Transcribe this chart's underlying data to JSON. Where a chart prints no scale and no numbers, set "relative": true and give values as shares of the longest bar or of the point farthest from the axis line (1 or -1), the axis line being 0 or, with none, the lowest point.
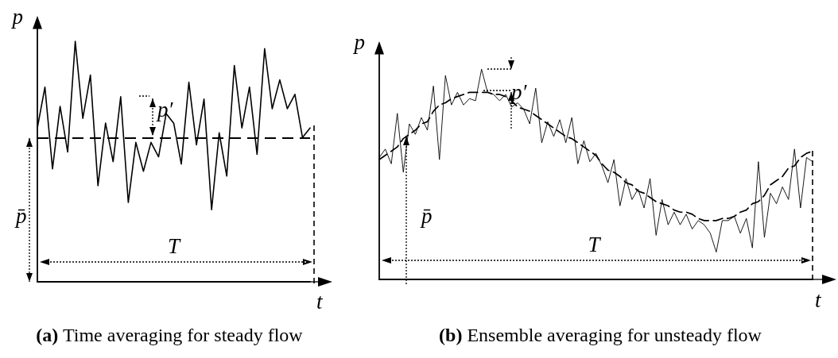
{
  "chart_data": [
    {
      "type": "line",
      "title": "(a) Time averaging for steady flow",
      "xlabel": "t",
      "ylabel": "p",
      "relative": true,
      "grid": false,
      "marker": "none",
      "annotations": [
        "p′",
        "p̄",
        "T"
      ],
      "categories": [
        null,
        null,
        null,
        null,
        null,
        null,
        null,
        null,
        null,
        null,
        null,
        null,
        null,
        null,
        null,
        null,
        null,
        null,
        null,
        null,
        null,
        null,
        null,
        null,
        null,
        null,
        null,
        null,
        null,
        null,
        null,
        null,
        null,
        null,
        null,
        null,
        null
      ],
      "series": [
        {
          "color": "#000000",
          "line_style": "solid",
          "values": [
            0.64,
            0.81,
            0.47,
            0.73,
            0.54,
            1.0,
            0.68,
            0.86,
            0.4,
            0.66,
            0.5,
            0.77,
            0.33,
            0.58,
            0.46,
            0.58,
            0.52,
            0.7,
            0.66,
            0.49,
            0.83,
            0.57,
            0.76,
            0.3,
            0.62,
            0.44,
            0.9,
            0.64,
            0.81,
            0.53,
            0.97,
            0.72,
            0.84,
            0.72,
            0.78,
            0.6,
            0.64
          ]
        }
      ],
      "ref_lines": [
        {
          "axis": "y",
          "value": 0.6,
          "color": "#000000",
          "line_style": "dashed"
        }
      ]
    },
    {
      "type": "line",
      "title": "(b) Ensemble averaging for unsteady flow",
      "xlabel": "t",
      "ylabel": "p",
      "relative": true,
      "grid": false,
      "marker": "none",
      "annotations": [
        "p′",
        "p̄",
        "T"
      ],
      "categories": [
        null,
        null,
        null,
        null,
        null,
        null,
        null,
        null,
        null,
        null,
        null,
        null,
        null,
        null,
        null,
        null,
        null,
        null,
        null,
        null,
        null,
        null,
        null,
        null,
        null,
        null,
        null,
        null,
        null,
        null,
        null,
        null,
        null,
        null,
        null,
        null,
        null,
        null,
        null,
        null,
        null,
        null,
        null,
        null,
        null,
        null,
        null,
        null,
        null,
        null,
        null,
        null,
        null,
        null,
        null,
        null,
        null,
        null,
        null,
        null,
        null,
        null,
        null,
        null,
        null,
        null,
        null,
        null,
        null,
        null,
        null,
        null,
        null
      ],
      "series": [
        {
          "color": "#000000",
          "line_style": "solid",
          "values": [
            0.58,
            0.62,
            0.55,
            0.79,
            0.51,
            0.74,
            0.69,
            0.77,
            0.71,
            0.92,
            0.57,
            0.97,
            0.83,
            0.89,
            0.83,
            0.86,
            0.85,
            1.0,
            0.89,
            0.88,
            0.85,
            0.88,
            0.82,
            0.84,
            0.81,
            0.74,
            0.91,
            0.65,
            0.75,
            0.68,
            0.76,
            0.65,
            0.77,
            0.55,
            0.66,
            0.56,
            0.6,
            0.54,
            0.46,
            0.57,
            0.35,
            0.48,
            0.38,
            0.43,
            0.34,
            0.48,
            0.21,
            0.38,
            0.26,
            0.32,
            0.26,
            0.31,
            0.24,
            0.28,
            0.26,
            0.22,
            0.13,
            0.28,
            0.28,
            0.3,
            0.22,
            0.29,
            0.15,
            0.56,
            0.2,
            0.41,
            0.36,
            0.44,
            0.38,
            0.62,
            0.34,
            0.58,
            0.56
          ]
        },
        {
          "color": "#000000",
          "line_style": "dashed",
          "values": [
            0.57,
            0.59,
            0.61,
            0.63,
            0.67,
            0.69,
            0.71,
            0.74,
            0.75,
            0.8,
            0.83,
            0.84,
            0.86,
            0.87,
            0.88,
            0.89,
            0.89,
            0.89,
            0.89,
            0.88,
            0.88,
            0.87,
            0.85,
            0.82,
            0.81,
            0.8,
            0.78,
            0.76,
            0.74,
            0.72,
            0.7,
            0.68,
            0.67,
            0.65,
            0.63,
            0.61,
            0.59,
            0.55,
            0.52,
            0.51,
            0.49,
            0.46,
            0.45,
            0.42,
            0.41,
            0.39,
            0.37,
            0.36,
            0.35,
            0.33,
            0.32,
            0.32,
            0.31,
            0.29,
            0.28,
            0.28,
            0.28,
            0.29,
            0.29,
            0.3,
            0.32,
            0.33,
            0.36,
            0.37,
            0.4,
            0.45,
            0.47,
            0.49,
            0.53,
            0.54,
            0.58,
            0.6,
            0.61
          ]
        }
      ]
    }
  ]
}
